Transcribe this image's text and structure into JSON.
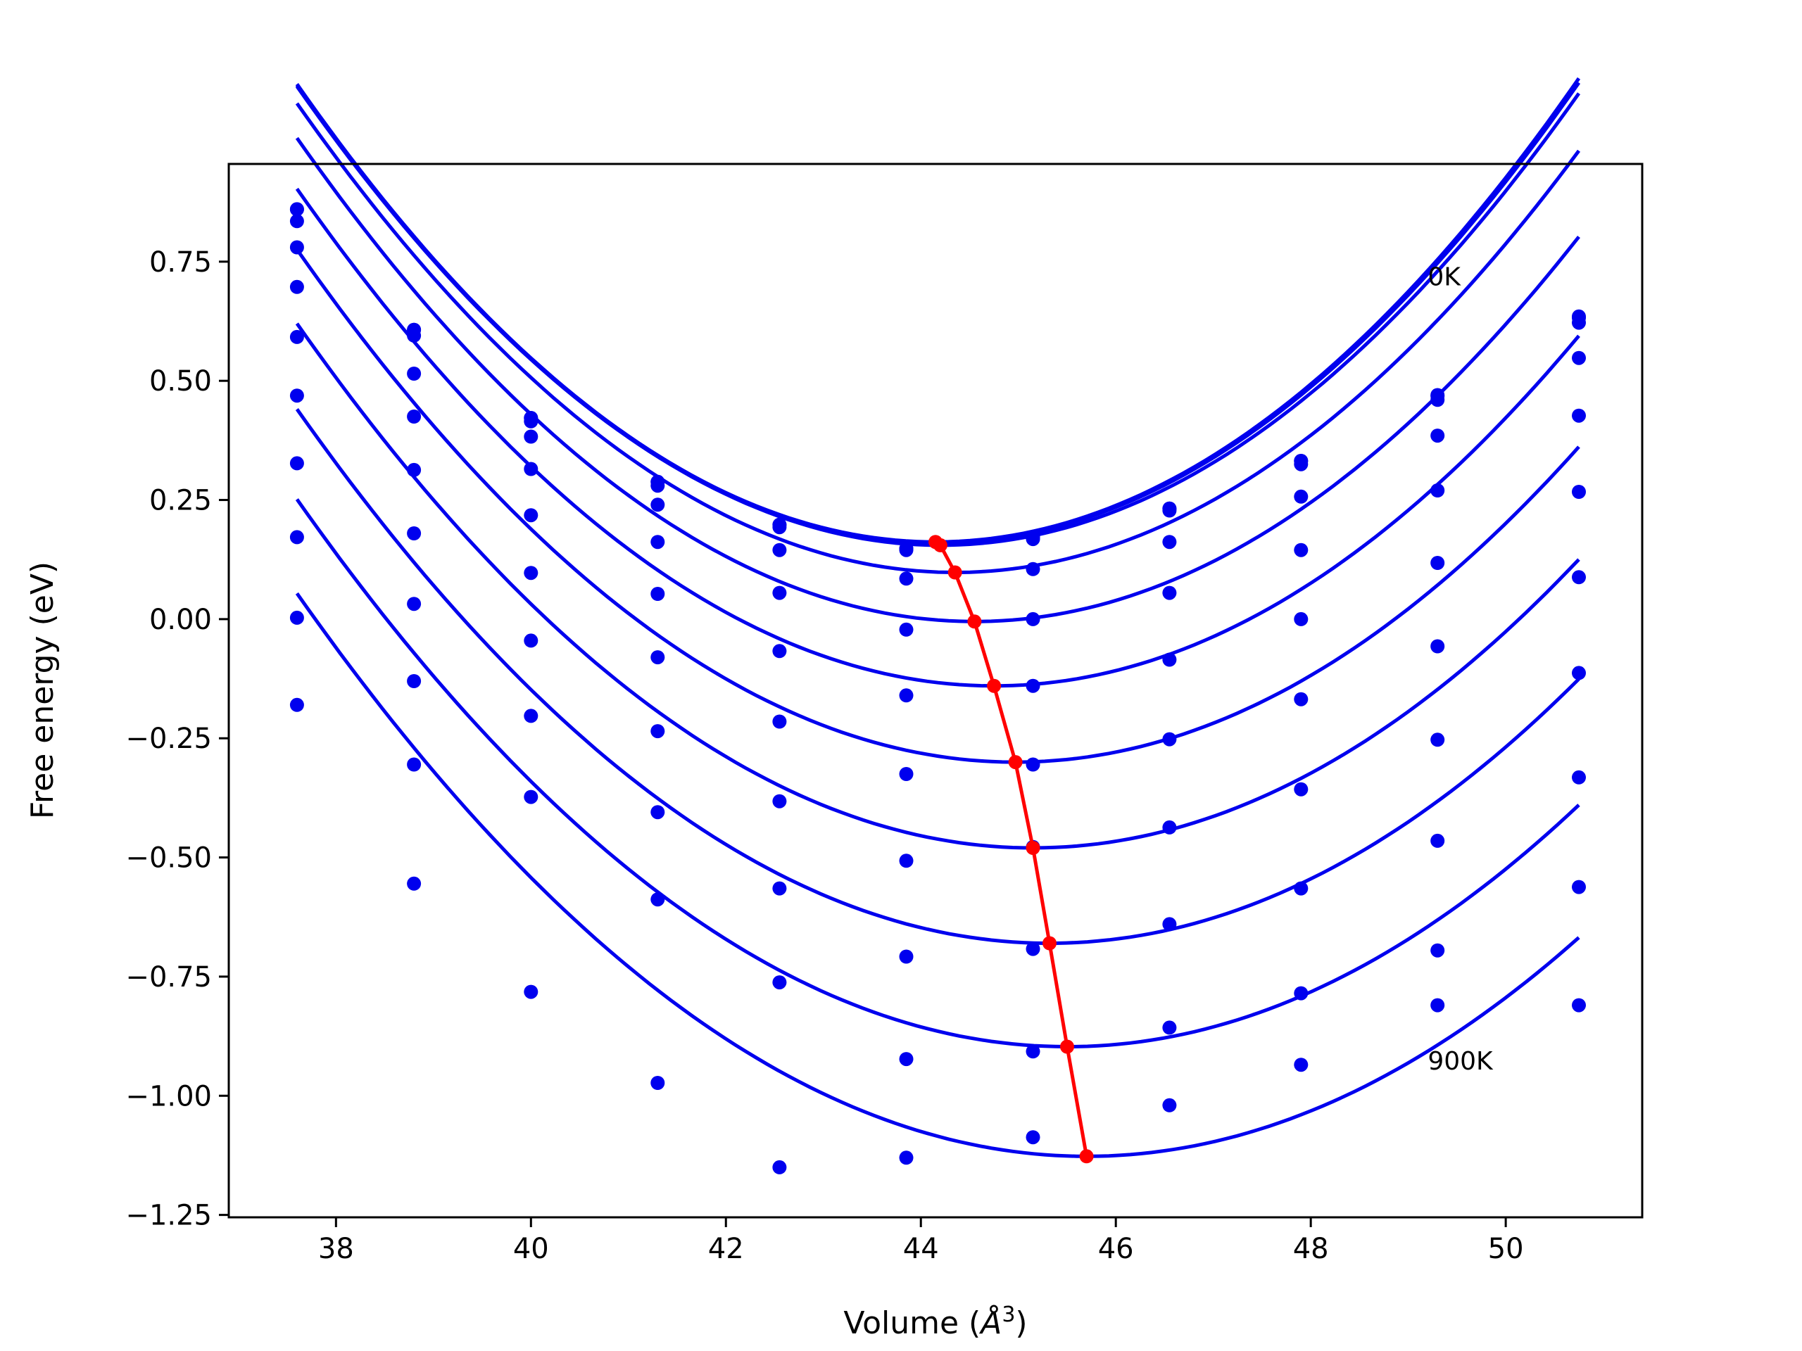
{
  "chart_data": {
    "type": "line",
    "xlabel": "Volume (Å³)",
    "xlabel_main": "Volume (",
    "xlabel_unit": "Å",
    "xlabel_sup": "3",
    "xlabel_end": ")",
    "ylabel": "Free energy (eV)",
    "xlim": [
      36.9,
      51.4
    ],
    "ylim": [
      -1.255,
      0.955
    ],
    "xticks": [
      38,
      40,
      42,
      44,
      46,
      48,
      50
    ],
    "xtick_labels": [
      "38",
      "40",
      "42",
      "44",
      "46",
      "48",
      "50"
    ],
    "yticks": [
      -1.25,
      -1.0,
      -0.75,
      -0.5,
      -0.25,
      0.0,
      0.25,
      0.5,
      0.75
    ],
    "ytick_labels": [
      "−1.25",
      "−1.00",
      "−0.75",
      "−0.50",
      "−0.25",
      "0.00",
      "0.25",
      "0.50",
      "0.75"
    ],
    "grid": false,
    "annotations": [
      {
        "text": "0K",
        "x": 49.2,
        "y": 0.7
      },
      {
        "text": "900K",
        "x": 49.2,
        "y": -0.945
      }
    ],
    "volumes": [
      37.6,
      38.8,
      40.0,
      41.3,
      42.55,
      43.85,
      45.15,
      46.55,
      47.9,
      49.3,
      50.75
    ],
    "series": [
      {
        "y": [
          0.86,
          0.607,
          0.422,
          0.288,
          0.198,
          0.148,
          0.172,
          0.232,
          0.332,
          0.47,
          0.635
        ],
        "fit": {
          "a": 0.02233,
          "vmin": 44.15,
          "emin": 0.162
        }
      },
      {
        "y": [
          0.86,
          0.607,
          0.422,
          0.288,
          0.198,
          0.148,
          0.172,
          0.232,
          0.332,
          0.468,
          0.632
        ],
        "fit": {
          "a": 0.0223,
          "vmin": 44.17,
          "emin": 0.16
        }
      },
      {
        "y": [
          0.835,
          0.595,
          0.415,
          0.28,
          0.193,
          0.145,
          0.168,
          0.228,
          0.325,
          0.46,
          0.622
        ],
        "fit": {
          "a": 0.0221,
          "vmin": 44.2,
          "emin": 0.155
        }
      },
      {
        "y": [
          0.78,
          0.515,
          0.383,
          0.24,
          0.145,
          0.085,
          0.105,
          0.162,
          0.257,
          0.385,
          0.548
        ],
        "fit": {
          "a": 0.0216,
          "vmin": 44.35,
          "emin": 0.098
        }
      },
      {
        "y": [
          0.697,
          0.425,
          0.315,
          0.162,
          0.055,
          -0.022,
          0.0,
          0.055,
          0.145,
          0.27,
          0.427
        ],
        "fit": {
          "a": 0.021,
          "vmin": 44.55,
          "emin": -0.005
        }
      },
      {
        "y": [
          0.592,
          0.313,
          0.218,
          0.053,
          -0.067,
          -0.16,
          -0.14,
          -0.085,
          0.0,
          0.118,
          0.267
        ],
        "fit": {
          "a": 0.0204,
          "vmin": 44.75,
          "emin": -0.14
        }
      },
      {
        "y": [
          0.469,
          0.18,
          0.097,
          -0.08,
          -0.215,
          -0.325,
          -0.305,
          -0.252,
          -0.168,
          -0.057,
          0.088
        ],
        "fit": {
          "a": 0.0198,
          "vmin": 44.97,
          "emin": -0.3
        }
      },
      {
        "y": [
          0.327,
          0.032,
          -0.045,
          -0.235,
          -0.382,
          -0.507,
          -0.478,
          -0.437,
          -0.357,
          -0.253,
          -0.113
        ],
        "fit": {
          "a": 0.0193,
          "vmin": 45.15,
          "emin": -0.48
        }
      },
      {
        "y": [
          0.172,
          -0.13,
          -0.203,
          -0.405,
          -0.565,
          -0.708,
          -0.692,
          -0.64,
          -0.565,
          -0.465,
          -0.332
        ],
        "fit": {
          "a": 0.0188,
          "vmin": 45.32,
          "emin": -0.68
        }
      },
      {
        "y": [
          0.003,
          -0.305,
          -0.373,
          -0.588,
          -0.762,
          -0.923,
          -0.907,
          -0.857,
          -0.785,
          -0.695,
          -0.562
        ],
        "fit": {
          "a": 0.0184,
          "vmin": 45.5,
          "emin": -0.897
        }
      },
      {
        "y": [
          -0.18,
          -0.555,
          -0.782,
          -0.973,
          -1.15,
          -1.13,
          -1.087,
          -1.02,
          -0.935,
          -0.81,
          -0.81
        ],
        "fit": {
          "a": 0.018,
          "vmin": 45.7,
          "emin": -1.127
        }
      }
    ],
    "minima_line": {
      "x": [
        44.15,
        44.2,
        44.35,
        44.55,
        44.75,
        44.97,
        45.15,
        45.32,
        45.5,
        45.7
      ],
      "y": [
        0.162,
        0.155,
        0.098,
        -0.005,
        -0.14,
        -0.3,
        -0.48,
        -0.68,
        -0.897,
        -1.127
      ]
    },
    "colors": {
      "curves": "#0000ee",
      "points": "#0000ee",
      "minima": "#ff0000",
      "axes": "#000000"
    }
  }
}
